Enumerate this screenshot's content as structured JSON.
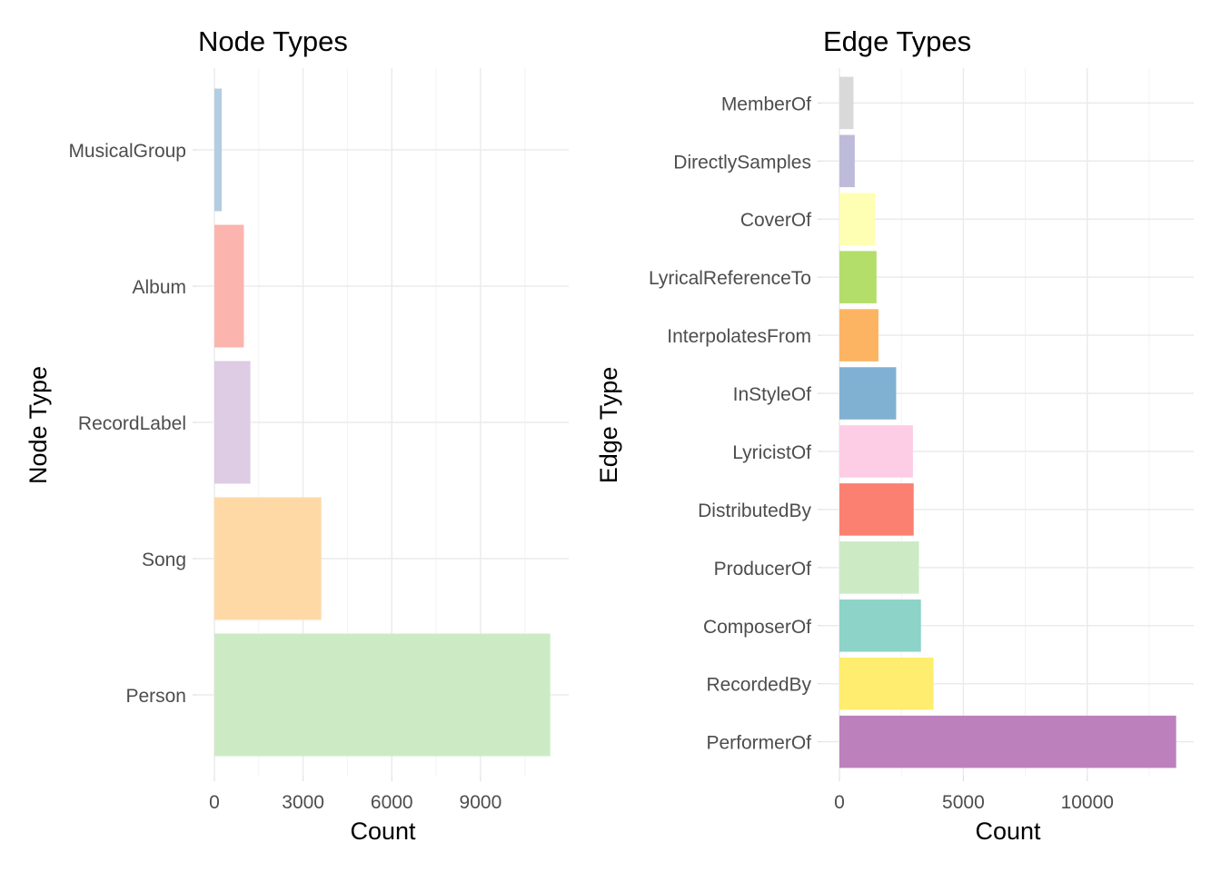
{
  "chart_data": [
    {
      "type": "bar",
      "orientation": "horizontal",
      "title": "Node Types",
      "xlabel": "Count",
      "ylabel": "Node Type",
      "xlim": [
        0,
        11400
      ],
      "x_ticks": [
        0,
        3000,
        6000,
        9000
      ],
      "x_tick_labels": [
        "0",
        "3000",
        "6000",
        "9000"
      ],
      "grid": true,
      "categories": [
        "Person",
        "Song",
        "RecordLabel",
        "Album",
        "MusicalGroup"
      ],
      "values": [
        11360,
        3615,
        1217,
        996,
        250
      ],
      "colors": [
        "#CCEBC5",
        "#FED9A6",
        "#DECBE4",
        "#FBB4AE",
        "#B3CDE3"
      ]
    },
    {
      "type": "bar",
      "orientation": "horizontal",
      "title": "Edge Types",
      "xlabel": "Count",
      "ylabel": "Edge Type",
      "xlim": [
        0,
        13600
      ],
      "x_ticks": [
        0,
        5000,
        10000
      ],
      "x_tick_labels": [
        "0",
        "5000",
        "10000"
      ],
      "grid": true,
      "categories": [
        "PerformerOf",
        "RecordedBy",
        "ComposerOf",
        "ProducerOf",
        "DistributedBy",
        "LyricistOf",
        "InStyleOf",
        "InterpolatesFrom",
        "LyricalReferenceTo",
        "CoverOf",
        "DirectlySamples",
        "MemberOf"
      ],
      "values": [
        13587,
        3798,
        3290,
        3209,
        2997,
        2965,
        2289,
        1574,
        1496,
        1429,
        619,
        568
      ],
      "colors": [
        "#BC80BD",
        "#FFED6F",
        "#8DD3C7",
        "#CCEBC5",
        "#FB8072",
        "#FCCDE5",
        "#80B1D3",
        "#FDB462",
        "#B3DE69",
        "#FFFFB3",
        "#BEBADA",
        "#D9D9D9"
      ]
    }
  ]
}
